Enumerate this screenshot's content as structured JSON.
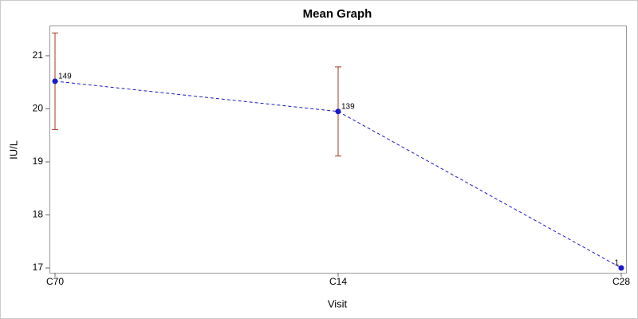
{
  "chart_data": {
    "type": "line",
    "title": "Mean Graph",
    "x_label": "Visit",
    "y_label": "IU/L",
    "categories": [
      "C70",
      "C14",
      "C28"
    ],
    "series": [
      {
        "color": "#1a1acc",
        "values": [
          20.52,
          19.95,
          17.0
        ],
        "errors": [
          0.91,
          0.84,
          null
        ],
        "error_color": "#a33a22",
        "point_labels": [
          149,
          139,
          1
        ]
      }
    ],
    "ylim": [
      16.91,
      21.57
    ],
    "yticks": [
      17,
      18,
      19,
      20,
      21
    ],
    "grid": false
  }
}
